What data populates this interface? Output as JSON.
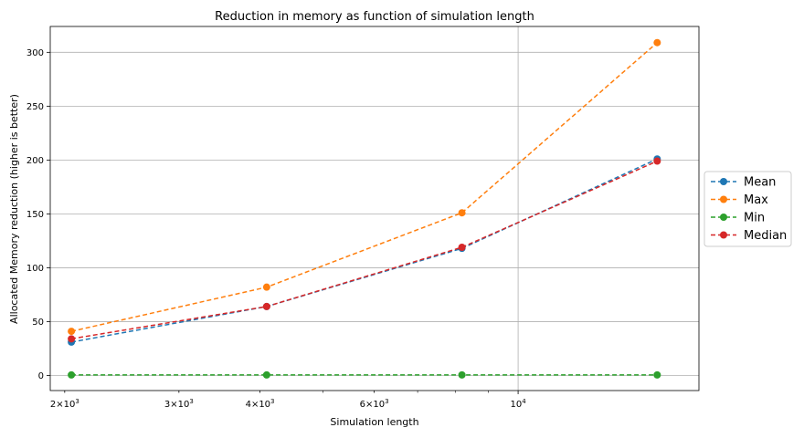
{
  "chart_data": {
    "type": "line",
    "title": "Reduction in memory as function of simulation length",
    "xlabel": "Simulation length",
    "ylabel": "Allocated Memory reduction (higher is better)",
    "x_scale": "log",
    "xlim": [
      1900,
      19000
    ],
    "ylim": [
      -14,
      324
    ],
    "x": [
      2048,
      4096,
      8192,
      16384
    ],
    "x_ticks": [
      {
        "value": 2000,
        "base": "2×10",
        "exp": "3"
      },
      {
        "value": 3000,
        "base": "3×10",
        "exp": "3"
      },
      {
        "value": 4000,
        "base": "4×10",
        "exp": "3"
      },
      {
        "value": 6000,
        "base": "6×10",
        "exp": "3"
      },
      {
        "value": 10000,
        "base": "10",
        "exp": "4"
      }
    ],
    "y_ticks": [
      0,
      50,
      100,
      150,
      200,
      250,
      300
    ],
    "grid": true,
    "legend_position": "right, outside plot",
    "series": [
      {
        "name": "Mean",
        "color": "#1f77b4",
        "values": [
          31,
          64,
          118,
          201
        ]
      },
      {
        "name": "Max",
        "color": "#ff7f0e",
        "values": [
          41,
          82,
          151,
          309
        ]
      },
      {
        "name": "Min",
        "color": "#2ca02c",
        "values": [
          0.5,
          0.5,
          0.5,
          0.5
        ]
      },
      {
        "name": "Median",
        "color": "#d62728",
        "values": [
          34,
          64,
          119,
          199
        ]
      }
    ]
  }
}
